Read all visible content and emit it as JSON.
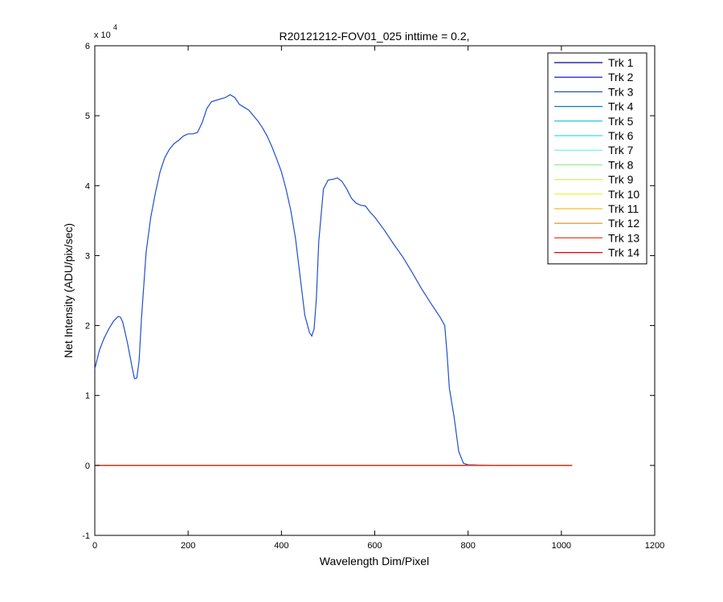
{
  "chart_data": {
    "type": "line",
    "title": "R20121212-FOV01_025 inttime = 0.2,",
    "xlabel": "Wavelength Dim/Pixel",
    "ylabel": "Net Intensity (ADU/pix/sec)",
    "y_exponent_label": {
      "base": "x 10",
      "exp": "4"
    },
    "xlim": [
      0,
      1200
    ],
    "ylim": [
      -10000,
      60000
    ],
    "x_ticks": [
      0,
      200,
      400,
      600,
      800,
      1000,
      1200
    ],
    "y_ticks": [
      -10000,
      0,
      10000,
      20000,
      30000,
      40000,
      50000,
      60000
    ],
    "y_tick_labels": [
      "-1",
      "0",
      "1",
      "2",
      "3",
      "4",
      "5",
      "6"
    ],
    "legend_position": "top-right",
    "grid": false,
    "main_series": {
      "name": "Trk 3",
      "x": [
        0,
        10,
        20,
        30,
        40,
        50,
        55,
        60,
        70,
        80,
        85,
        90,
        95,
        100,
        110,
        120,
        130,
        140,
        150,
        160,
        170,
        180,
        190,
        200,
        210,
        220,
        230,
        240,
        250,
        260,
        270,
        280,
        290,
        300,
        310,
        320,
        330,
        340,
        350,
        360,
        370,
        380,
        390,
        400,
        410,
        420,
        430,
        440,
        450,
        460,
        465,
        470,
        475,
        480,
        490,
        500,
        510,
        520,
        530,
        540,
        550,
        560,
        570,
        580,
        590,
        600,
        620,
        640,
        660,
        680,
        700,
        720,
        740,
        750,
        755,
        760,
        770,
        780,
        790,
        800,
        820,
        850,
        900,
        1023
      ],
      "y": [
        13800,
        16500,
        18200,
        19500,
        20600,
        21300,
        21200,
        20500,
        17500,
        14000,
        12400,
        12500,
        15000,
        21000,
        30500,
        35500,
        39000,
        42000,
        44000,
        45200,
        46000,
        46500,
        47100,
        47400,
        47400,
        47600,
        49000,
        51000,
        52000,
        52200,
        52400,
        52600,
        53000,
        52600,
        51600,
        51200,
        50800,
        50000,
        49200,
        48200,
        47000,
        45500,
        43800,
        42000,
        39500,
        36500,
        32500,
        27000,
        21500,
        19000,
        18500,
        19500,
        24000,
        32000,
        39500,
        40800,
        40900,
        41100,
        40600,
        39500,
        38200,
        37500,
        37200,
        37100,
        36200,
        35500,
        33700,
        31700,
        29800,
        27600,
        25300,
        23200,
        21200,
        20000,
        16000,
        11000,
        7000,
        2000,
        300,
        100,
        50,
        30,
        20,
        0
      ],
      "color": "#1f4fd0"
    },
    "series": [
      {
        "name": "Trk 1",
        "color": "#00008f"
      },
      {
        "name": "Trk 2",
        "color": "#0000cf"
      },
      {
        "name": "Trk 3",
        "color": "#1f4fd0"
      },
      {
        "name": "Trk 4",
        "color": "#0080c0"
      },
      {
        "name": "Trk 5",
        "color": "#00c0e0"
      },
      {
        "name": "Trk 6",
        "color": "#30e0e8"
      },
      {
        "name": "Trk 7",
        "color": "#60f0e0"
      },
      {
        "name": "Trk 8",
        "color": "#90f090"
      },
      {
        "name": "Trk 9",
        "color": "#d0f060"
      },
      {
        "name": "Trk 10",
        "color": "#f0f020"
      },
      {
        "name": "Trk 11",
        "color": "#f0c020"
      },
      {
        "name": "Trk 12",
        "color": "#f08020"
      },
      {
        "name": "Trk 13",
        "color": "#f04020"
      },
      {
        "name": "Trk 14",
        "color": "#e00000"
      }
    ],
    "flat_series": {
      "x": [
        0,
        1023
      ],
      "y": [
        0,
        0
      ]
    }
  }
}
